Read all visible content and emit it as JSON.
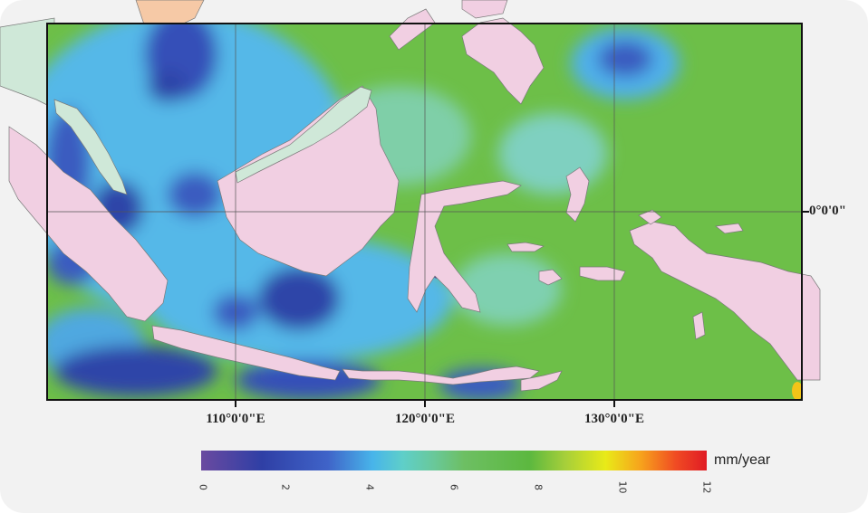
{
  "map": {
    "lon_labels": [
      "110°0'0\"E",
      "120°0'0\"E",
      "130°0'0\"E"
    ],
    "lat_label": "0°0'0\"",
    "colors": {
      "land": "#f1cfe2",
      "coast": "#7a7a7a",
      "grid": "#555555",
      "mainland_green": "#cfe8d8",
      "mainland_orange": "#f6c9a6"
    }
  },
  "legend": {
    "unit": "mm/year",
    "ticks": [
      "0",
      "2",
      "4",
      "6",
      "8",
      "10",
      "12"
    ],
    "range": [
      0,
      12
    ]
  }
}
